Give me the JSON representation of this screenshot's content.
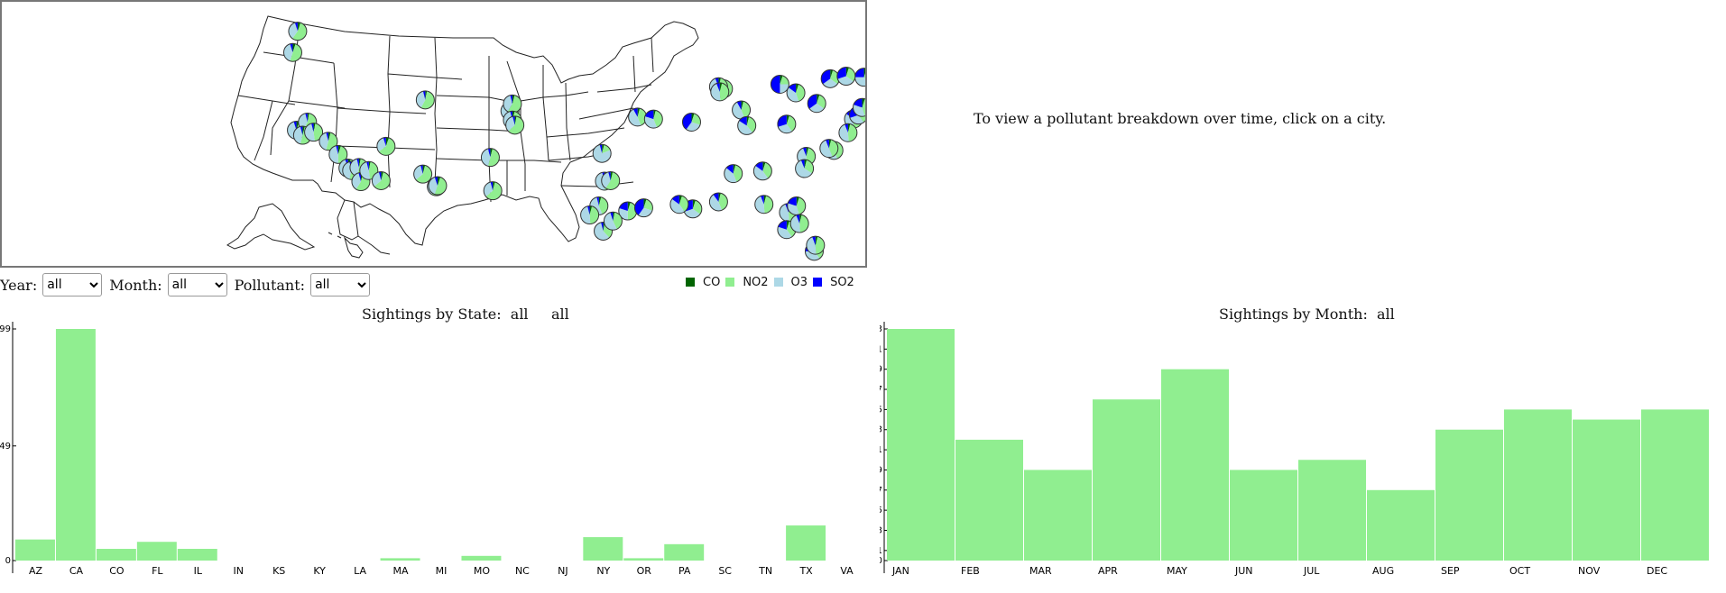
{
  "info_text": "To view a pollutant breakdown over time, click on a city.",
  "controls": {
    "year_label": "Year:",
    "year_value": "all",
    "month_label": "Month:",
    "month_value": "all",
    "pollutant_label": "Pollutant:",
    "pollutant_value": "all"
  },
  "legend": [
    {
      "label": "CO",
      "color": "#006400"
    },
    {
      "label": "NO2",
      "color": "#90ee90"
    },
    {
      "label": "O3",
      "color": "#add8e6"
    },
    {
      "label": "SO2",
      "color": "#0000ff"
    }
  ],
  "map": {
    "cities": [
      {
        "lon": -122.3,
        "lat": 47.6,
        "co": 0.05,
        "no2": 0.55,
        "o3": 0.35,
        "so2": 0.05
      },
      {
        "lon": -122.7,
        "lat": 45.5,
        "co": 0.05,
        "no2": 0.5,
        "o3": 0.4,
        "so2": 0.05
      },
      {
        "lon": -122.4,
        "lat": 37.8,
        "co": 0.05,
        "no2": 0.5,
        "o3": 0.4,
        "so2": 0.05
      },
      {
        "lon": -121.5,
        "lat": 38.6,
        "co": 0.03,
        "no2": 0.55,
        "o3": 0.38,
        "so2": 0.04
      },
      {
        "lon": -121.9,
        "lat": 37.3,
        "co": 0.04,
        "no2": 0.5,
        "o3": 0.42,
        "so2": 0.04
      },
      {
        "lon": -121.0,
        "lat": 37.6,
        "co": 0.03,
        "no2": 0.45,
        "o3": 0.48,
        "so2": 0.04
      },
      {
        "lon": -119.8,
        "lat": 36.7,
        "co": 0.04,
        "no2": 0.5,
        "o3": 0.42,
        "so2": 0.04
      },
      {
        "lon": -119.0,
        "lat": 35.4,
        "co": 0.05,
        "no2": 0.45,
        "o3": 0.46,
        "so2": 0.04
      },
      {
        "lon": -118.2,
        "lat": 34.05,
        "co": 0.05,
        "no2": 0.5,
        "o3": 0.4,
        "so2": 0.05
      },
      {
        "lon": -117.9,
        "lat": 33.8,
        "co": 0.04,
        "no2": 0.5,
        "o3": 0.42,
        "so2": 0.04
      },
      {
        "lon": -117.3,
        "lat": 34.1,
        "co": 0.03,
        "no2": 0.5,
        "o3": 0.43,
        "so2": 0.04
      },
      {
        "lon": -117.15,
        "lat": 32.7,
        "co": 0.04,
        "no2": 0.55,
        "o3": 0.37,
        "so2": 0.04
      },
      {
        "lon": -116.5,
        "lat": 33.8,
        "co": 0.03,
        "no2": 0.45,
        "o3": 0.48,
        "so2": 0.04
      },
      {
        "lon": -115.5,
        "lat": 32.8,
        "co": 0.04,
        "no2": 0.6,
        "o3": 0.32,
        "so2": 0.04
      },
      {
        "lon": -115.1,
        "lat": 36.2,
        "co": 0.05,
        "no2": 0.6,
        "o3": 0.3,
        "so2": 0.05
      },
      {
        "lon": -111.9,
        "lat": 40.8,
        "co": 0.03,
        "no2": 0.55,
        "o3": 0.38,
        "so2": 0.04
      },
      {
        "lon": -112.1,
        "lat": 33.45,
        "co": 0.04,
        "no2": 0.6,
        "o3": 0.32,
        "so2": 0.04
      },
      {
        "lon": -111.0,
        "lat": 32.2,
        "co": 0.04,
        "no2": 0.55,
        "o3": 0.37,
        "so2": 0.04
      },
      {
        "lon": -110.9,
        "lat": 32.3,
        "co": 0.05,
        "no2": 0.5,
        "o3": 0.4,
        "so2": 0.05
      },
      {
        "lon": -106.6,
        "lat": 35.1,
        "co": 0.04,
        "no2": 0.5,
        "o3": 0.42,
        "so2": 0.04
      },
      {
        "lon": -105.0,
        "lat": 39.7,
        "co": 0.05,
        "no2": 0.45,
        "o3": 0.35,
        "so2": 0.15
      },
      {
        "lon": -104.8,
        "lat": 40.4,
        "co": 0.04,
        "no2": 0.55,
        "o3": 0.37,
        "so2": 0.04
      },
      {
        "lon": -104.8,
        "lat": 38.8,
        "co": 0.04,
        "no2": 0.55,
        "o3": 0.37,
        "so2": 0.04
      },
      {
        "lon": -104.6,
        "lat": 38.3,
        "co": 0.03,
        "no2": 0.6,
        "o3": 0.33,
        "so2": 0.04
      },
      {
        "lon": -106.4,
        "lat": 31.8,
        "co": 0.04,
        "no2": 0.6,
        "o3": 0.32,
        "so2": 0.04
      },
      {
        "lon": -97.5,
        "lat": 35.5,
        "co": 0.04,
        "no2": 0.15,
        "o3": 0.77,
        "so2": 0.04
      },
      {
        "lon": -97.3,
        "lat": 32.75,
        "co": 0.04,
        "no2": 0.45,
        "o3": 0.47,
        "so2": 0.04
      },
      {
        "lon": -96.8,
        "lat": 32.8,
        "co": 0.04,
        "no2": 0.55,
        "o3": 0.37,
        "so2": 0.04
      },
      {
        "lon": -97.75,
        "lat": 30.3,
        "co": 0.04,
        "no2": 0.4,
        "o3": 0.52,
        "so2": 0.04
      },
      {
        "lon": -98.5,
        "lat": 29.4,
        "co": 0.04,
        "no2": 0.45,
        "o3": 0.47,
        "so2": 0.04
      },
      {
        "lon": -95.4,
        "lat": 29.8,
        "co": 0.05,
        "no2": 0.45,
        "o3": 0.3,
        "so2": 0.2
      },
      {
        "lon": -94.1,
        "lat": 30.1,
        "co": 0.05,
        "no2": 0.25,
        "o3": 0.3,
        "so2": 0.4
      },
      {
        "lon": -97.4,
        "lat": 27.8,
        "co": 0.03,
        "no2": 0.35,
        "o3": 0.58,
        "so2": 0.04
      },
      {
        "lon": -96.6,
        "lat": 28.8,
        "co": 0.03,
        "no2": 0.4,
        "o3": 0.52,
        "so2": 0.05
      },
      {
        "lon": -94.6,
        "lat": 39.1,
        "co": 0.04,
        "no2": 0.4,
        "o3": 0.48,
        "so2": 0.08
      },
      {
        "lon": -93.3,
        "lat": 38.9,
        "co": 0.04,
        "no2": 0.4,
        "o3": 0.36,
        "so2": 0.2
      },
      {
        "lon": -90.2,
        "lat": 38.6,
        "co": 0.05,
        "no2": 0.25,
        "o3": 0.3,
        "so2": 0.4
      },
      {
        "lon": -90.1,
        "lat": 30.0,
        "co": 0.05,
        "no2": 0.3,
        "o3": 0.35,
        "so2": 0.3
      },
      {
        "lon": -91.2,
        "lat": 30.45,
        "co": 0.05,
        "no2": 0.35,
        "o3": 0.45,
        "so2": 0.15
      },
      {
        "lon": -87.6,
        "lat": 41.9,
        "co": 0.05,
        "no2": 0.35,
        "o3": 0.3,
        "so2": 0.3
      },
      {
        "lon": -88.0,
        "lat": 42.1,
        "co": 0.04,
        "no2": 0.5,
        "o3": 0.4,
        "so2": 0.06
      },
      {
        "lon": -87.9,
        "lat": 41.6,
        "co": 0.04,
        "no2": 0.45,
        "o3": 0.45,
        "so2": 0.06
      },
      {
        "lon": -86.15,
        "lat": 39.8,
        "co": 0.04,
        "no2": 0.4,
        "o3": 0.48,
        "so2": 0.08
      },
      {
        "lon": -85.7,
        "lat": 38.25,
        "co": 0.04,
        "no2": 0.35,
        "o3": 0.45,
        "so2": 0.16
      },
      {
        "lon": -83.0,
        "lat": 42.35,
        "co": 0.05,
        "no2": 0.2,
        "o3": 0.25,
        "so2": 0.5
      },
      {
        "lon": -82.45,
        "lat": 38.4,
        "co": 0.05,
        "no2": 0.35,
        "o3": 0.3,
        "so2": 0.3
      },
      {
        "lon": -81.7,
        "lat": 41.5,
        "co": 0.05,
        "no2": 0.4,
        "o3": 0.4,
        "so2": 0.15
      },
      {
        "lon": -80.0,
        "lat": 40.45,
        "co": 0.05,
        "no2": 0.3,
        "o3": 0.3,
        "so2": 0.35
      },
      {
        "lon": -80.85,
        "lat": 35.2,
        "co": 0.04,
        "no2": 0.45,
        "o3": 0.45,
        "so2": 0.06
      },
      {
        "lon": -81.0,
        "lat": 34.0,
        "co": 0.04,
        "no2": 0.3,
        "o3": 0.6,
        "so2": 0.06
      },
      {
        "lon": -84.4,
        "lat": 33.75,
        "co": 0.05,
        "no2": 0.35,
        "o3": 0.45,
        "so2": 0.15
      },
      {
        "lon": -86.8,
        "lat": 33.5,
        "co": 0.04,
        "no2": 0.4,
        "o3": 0.42,
        "so2": 0.14
      },
      {
        "lon": -88.0,
        "lat": 30.7,
        "co": 0.04,
        "no2": 0.4,
        "o3": 0.46,
        "so2": 0.1
      },
      {
        "lon": -84.3,
        "lat": 30.45,
        "co": 0.04,
        "no2": 0.45,
        "o3": 0.45,
        "so2": 0.06
      },
      {
        "lon": -82.3,
        "lat": 29.65,
        "co": 0.04,
        "no2": 0.45,
        "o3": 0.45,
        "so2": 0.06
      },
      {
        "lon": -81.65,
        "lat": 30.3,
        "co": 0.05,
        "no2": 0.4,
        "o3": 0.35,
        "so2": 0.2
      },
      {
        "lon": -82.45,
        "lat": 27.95,
        "co": 0.05,
        "no2": 0.35,
        "o3": 0.4,
        "so2": 0.2
      },
      {
        "lon": -81.4,
        "lat": 28.55,
        "co": 0.04,
        "no2": 0.45,
        "o3": 0.45,
        "so2": 0.06
      },
      {
        "lon": -80.2,
        "lat": 25.8,
        "co": 0.05,
        "no2": 0.35,
        "o3": 0.35,
        "so2": 0.25
      },
      {
        "lon": -80.1,
        "lat": 26.4,
        "co": 0.04,
        "no2": 0.45,
        "o3": 0.45,
        "so2": 0.06
      },
      {
        "lon": -77.0,
        "lat": 38.9,
        "co": 0.05,
        "no2": 0.45,
        "o3": 0.35,
        "so2": 0.15
      },
      {
        "lon": -76.6,
        "lat": 39.3,
        "co": 0.05,
        "no2": 0.35,
        "o3": 0.3,
        "so2": 0.3
      },
      {
        "lon": -77.45,
        "lat": 37.55,
        "co": 0.04,
        "no2": 0.45,
        "o3": 0.45,
        "so2": 0.06
      },
      {
        "lon": -75.2,
        "lat": 39.95,
        "co": 0.05,
        "no2": 0.4,
        "o3": 0.35,
        "so2": 0.2
      },
      {
        "lon": -74.2,
        "lat": 40.7,
        "co": 0.05,
        "no2": 0.5,
        "o3": 0.3,
        "so2": 0.15
      },
      {
        "lon": -74.0,
        "lat": 40.75,
        "co": 0.05,
        "no2": 0.45,
        "o3": 0.3,
        "so2": 0.2
      },
      {
        "lon": -73.8,
        "lat": 42.65,
        "co": 0.04,
        "no2": 0.45,
        "o3": 0.45,
        "so2": 0.06
      },
      {
        "lon": -73.2,
        "lat": 41.2,
        "co": 0.04,
        "no2": 0.5,
        "o3": 0.4,
        "so2": 0.06
      },
      {
        "lon": -71.05,
        "lat": 42.35,
        "co": 0.05,
        "no2": 0.4,
        "o3": 0.35,
        "so2": 0.2
      },
      {
        "lon": -71.4,
        "lat": 41.8,
        "co": 0.04,
        "no2": 0.45,
        "o3": 0.4,
        "so2": 0.11
      },
      {
        "lon": -72.7,
        "lat": 41.75,
        "co": 0.04,
        "no2": 0.5,
        "o3": 0.4,
        "so2": 0.06
      },
      {
        "lon": -72.9,
        "lat": 41.3,
        "co": 0.04,
        "no2": 0.45,
        "o3": 0.45,
        "so2": 0.06
      },
      {
        "lon": -73.1,
        "lat": 44.5,
        "co": 0.05,
        "no2": 0.2,
        "o3": 0.25,
        "so2": 0.5
      },
      {
        "lon": -73.3,
        "lat": 44.0,
        "co": 0.05,
        "no2": 0.35,
        "o3": 0.3,
        "so2": 0.3
      },
      {
        "lon": -78.9,
        "lat": 42.9,
        "co": 0.05,
        "no2": 0.3,
        "o3": 0.3,
        "so2": 0.35
      },
      {
        "lon": -76.15,
        "lat": 43.05,
        "co": 0.05,
        "no2": 0.35,
        "o3": 0.35,
        "so2": 0.25
      },
      {
        "lon": -77.6,
        "lat": 43.15,
        "co": 0.05,
        "no2": 0.3,
        "o3": 0.35,
        "so2": 0.3
      },
      {
        "lon": -74.7,
        "lat": 40.2,
        "co": 0.04,
        "no2": 0.45,
        "o3": 0.41,
        "so2": 0.1
      },
      {
        "lon": -76.3,
        "lat": 40.05,
        "co": 0.05,
        "no2": 0.4,
        "o3": 0.35,
        "so2": 0.2
      },
      {
        "lon": -78.6,
        "lat": 35.8,
        "co": 0.04,
        "no2": 0.4,
        "o3": 0.5,
        "so2": 0.06
      },
      {
        "lon": -79.0,
        "lat": 36.0,
        "co": 0.04,
        "no2": 0.4,
        "o3": 0.5,
        "so2": 0.06
      }
    ]
  },
  "state_chart": {
    "title": "Sightings by State:  all     all"
  },
  "month_chart": {
    "title": "Sightings by Month:  all"
  },
  "chart_data": [
    {
      "type": "bar",
      "title": "Sightings by State:  all     all",
      "categories": [
        "AZ",
        "CA",
        "CO",
        "FL",
        "IL",
        "IN",
        "KS",
        "KY",
        "LA",
        "MA",
        "MI",
        "MO",
        "NC",
        "NJ",
        "NY",
        "OR",
        "PA",
        "SC",
        "TN",
        "TX",
        "VA"
      ],
      "values": [
        9,
        99,
        5,
        8,
        5,
        0,
        0,
        0,
        0,
        1,
        0,
        2,
        0,
        0,
        10,
        1,
        7,
        0,
        0,
        15,
        0
      ],
      "yticks": [
        0,
        49,
        99
      ],
      "ylim": [
        0,
        99
      ],
      "color": "#90ee90"
    },
    {
      "type": "bar",
      "title": "Sightings by Month:  all",
      "categories": [
        "JAN",
        "FEB",
        "MAR",
        "APR",
        "MAY",
        "JUN",
        "JUL",
        "AUG",
        "SEP",
        "OCT",
        "NOV",
        "DEC"
      ],
      "values": [
        23,
        12,
        9,
        16,
        19,
        9,
        10,
        7,
        13,
        15,
        14,
        15
      ],
      "yticks": [
        0,
        1,
        3,
        5,
        7,
        9,
        11,
        13,
        15,
        17,
        19,
        21,
        23
      ],
      "ylim": [
        0,
        23
      ],
      "color": "#90ee90"
    }
  ]
}
